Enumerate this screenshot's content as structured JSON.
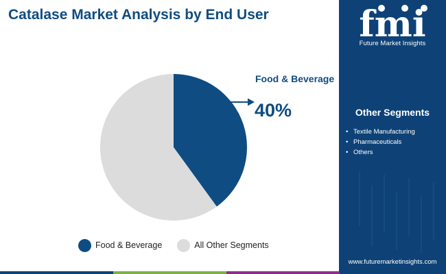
{
  "title": "Catalase Market Analysis by End User",
  "callout": {
    "label": "Food & Beverage",
    "value": "40%"
  },
  "chart_data": {
    "type": "pie",
    "title": "Catalase Market Analysis by End User",
    "labels": [
      "Food & Beverage",
      "All Other Segments"
    ],
    "values": [
      40,
      60
    ],
    "colors": [
      "#0f4c81",
      "#dcdcdc"
    ],
    "legend_position": "bottom"
  },
  "legend": [
    {
      "label": "Food & Beverage",
      "color": "#0f4c81"
    },
    {
      "label": "All Other Segments",
      "color": "#dcdcdc"
    }
  ],
  "logo": {
    "letters": "fmi",
    "tagline": "Future Market Insights"
  },
  "side_panel": {
    "heading": "Other Segments",
    "items": [
      "Textile Manufacturing",
      "Pharmaceuticals",
      "Others"
    ],
    "bullet": "•",
    "website": "www.futuremarketinsights.com"
  },
  "colors": {
    "brand_blue": "#0f4c81",
    "panel_blue": "#0e4277",
    "bar": [
      "#0e4277",
      "#7cb342",
      "#8e2c8e",
      "#0e4277"
    ]
  }
}
